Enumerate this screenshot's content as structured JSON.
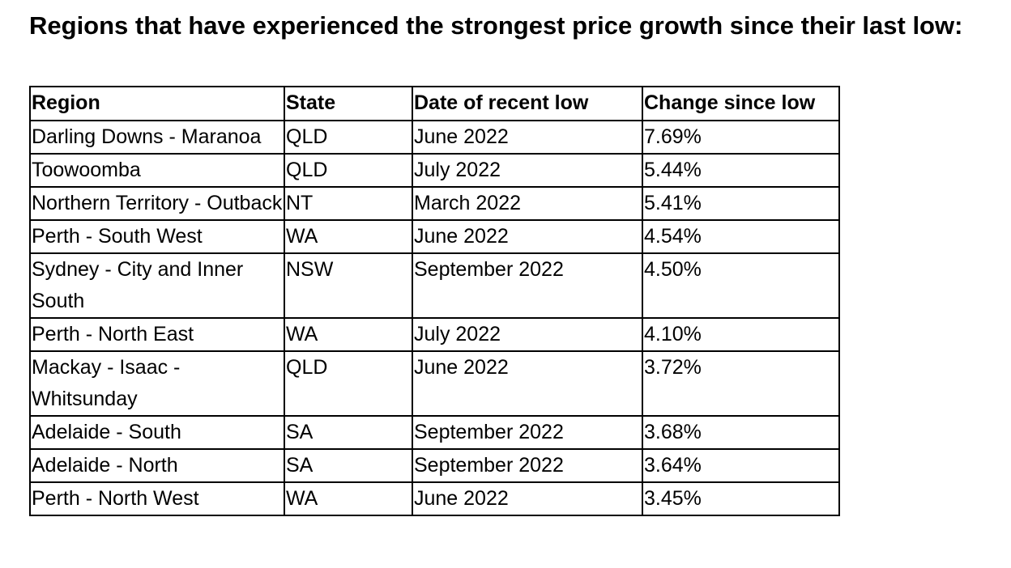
{
  "heading": "Regions that have experienced the strongest price growth since their last low:",
  "table": {
    "headers": [
      "Region",
      "State",
      "Date of recent low",
      "Change since low"
    ],
    "rows": [
      [
        "Darling Downs - Maranoa",
        "QLD",
        "June 2022",
        "7.69%"
      ],
      [
        "Toowoomba",
        "QLD",
        "July 2022",
        "5.44%"
      ],
      [
        "Northern Territory - Outback",
        "NT",
        "March 2022",
        "5.41%"
      ],
      [
        "Perth - South West",
        "WA",
        "June 2022",
        "4.54%"
      ],
      [
        "Sydney - City and Inner South",
        "NSW",
        "September 2022",
        "4.50%"
      ],
      [
        "Perth - North East",
        "WA",
        "July 2022",
        "4.10%"
      ],
      [
        "Mackay - Isaac - Whitsunday",
        "QLD",
        "June 2022",
        "3.72%"
      ],
      [
        "Adelaide - South",
        "SA",
        "September 2022",
        "3.68%"
      ],
      [
        "Adelaide - North",
        "SA",
        "September 2022",
        "3.64%"
      ],
      [
        "Perth - North West",
        "WA",
        "June 2022",
        "3.45%"
      ]
    ]
  }
}
